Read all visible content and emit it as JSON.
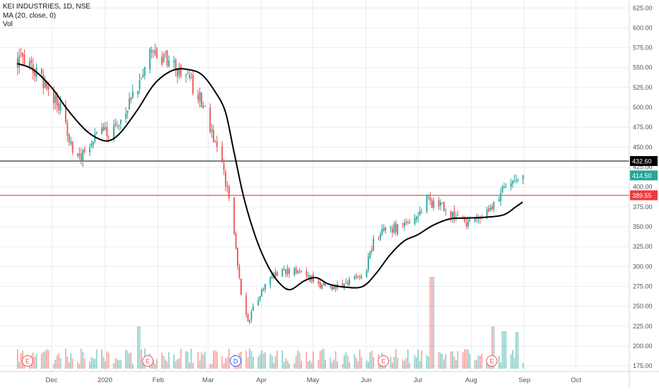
{
  "legend": {
    "title": "KEI INDUSTRIES, 1D, NSE",
    "ma": "MA (20, close, 0)",
    "vol": "Vol"
  },
  "colors": {
    "up": "#26a69a",
    "down": "#ef5350",
    "ma": "#000000",
    "grid": "#e8ecf2",
    "axis_text": "#50535e",
    "resistance": "#000000",
    "support": "#ef3a3a",
    "last": "#26a69a"
  },
  "chart_data": {
    "type": "candlestick",
    "y_axis": {
      "ylim": [
        168,
        635
      ],
      "ticks": [
        175,
        200,
        225,
        250,
        275,
        300,
        325,
        350,
        375,
        400,
        425,
        450,
        475,
        500,
        525,
        550,
        575,
        600,
        625
      ],
      "tick_labels": [
        "175.00",
        "200.00",
        "225.00",
        "250.00",
        "275.00",
        "300.00",
        "325.00",
        "350.00",
        "375.00",
        "400.00",
        "425.00",
        "450.00",
        "475.00",
        "500.00",
        "525.00",
        "550.00",
        "575.00",
        "600.00",
        "625.00"
      ]
    },
    "x_axis": {
      "ticks": [
        "2019-12-01",
        "2020-01-01",
        "2020-02-01",
        "2020-03-01",
        "2020-04-01",
        "2020-05-01",
        "2020-06-01",
        "2020-07-01",
        "2020-08-01",
        "2020-09-01",
        "2020-10-01"
      ],
      "tick_labels": [
        "Dec",
        "2020",
        "Feb",
        "Mar",
        "Apr",
        "May",
        "Jun",
        "Jul",
        "Aug",
        "Sep",
        "Oct"
      ]
    },
    "price_path": [
      [
        "2019-11-11",
        560
      ],
      [
        "2019-11-20",
        548
      ],
      [
        "2019-11-28",
        525
      ],
      [
        "2019-12-05",
        505
      ],
      [
        "2019-12-12",
        450
      ],
      [
        "2019-12-18",
        440
      ],
      [
        "2019-12-24",
        460
      ],
      [
        "2019-12-30",
        470
      ],
      [
        "2020-01-06",
        470
      ],
      [
        "2020-01-13",
        495
      ],
      [
        "2020-01-20",
        530
      ],
      [
        "2020-01-27",
        570
      ],
      [
        "2020-01-31",
        565
      ],
      [
        "2020-02-06",
        560
      ],
      [
        "2020-02-13",
        545
      ],
      [
        "2020-02-20",
        530
      ],
      [
        "2020-02-27",
        505
      ],
      [
        "2020-03-03",
        470
      ],
      [
        "2020-03-07",
        440
      ],
      [
        "2020-03-12",
        400
      ],
      [
        "2020-03-15",
        355
      ],
      [
        "2020-03-18",
        300
      ],
      [
        "2020-03-20",
        265
      ],
      [
        "2020-03-24",
        230
      ],
      [
        "2020-03-27",
        250
      ],
      [
        "2020-04-01",
        270
      ],
      [
        "2020-04-08",
        290
      ],
      [
        "2020-04-15",
        295
      ],
      [
        "2020-04-22",
        292
      ],
      [
        "2020-04-30",
        285
      ],
      [
        "2020-05-07",
        275
      ],
      [
        "2020-05-14",
        272
      ],
      [
        "2020-05-20",
        278
      ],
      [
        "2020-05-27",
        285
      ],
      [
        "2020-06-01",
        300
      ],
      [
        "2020-06-05",
        330
      ],
      [
        "2020-06-10",
        345
      ],
      [
        "2020-06-17",
        348
      ],
      [
        "2020-06-24",
        355
      ],
      [
        "2020-07-01",
        365
      ],
      [
        "2020-07-06",
        385
      ],
      [
        "2020-07-10",
        378
      ],
      [
        "2020-07-17",
        372
      ],
      [
        "2020-07-24",
        362
      ],
      [
        "2020-07-31",
        355
      ],
      [
        "2020-08-07",
        360
      ],
      [
        "2020-08-14",
        375
      ],
      [
        "2020-08-20",
        400
      ],
      [
        "2020-08-26",
        405
      ],
      [
        "2020-08-31",
        414.5
      ]
    ],
    "moving_average": {
      "name": "MA (20, close, 0)",
      "points": [
        [
          "2019-11-11",
          555
        ],
        [
          "2019-11-20",
          548
        ],
        [
          "2019-12-01",
          525
        ],
        [
          "2019-12-10",
          498
        ],
        [
          "2019-12-20",
          473
        ],
        [
          "2019-12-27",
          462
        ],
        [
          "2020-01-03",
          458
        ],
        [
          "2020-01-10",
          468
        ],
        [
          "2020-01-20",
          497
        ],
        [
          "2020-01-30",
          530
        ],
        [
          "2020-02-10",
          547
        ],
        [
          "2020-02-20",
          547
        ],
        [
          "2020-02-27",
          540
        ],
        [
          "2020-03-05",
          520
        ],
        [
          "2020-03-11",
          495
        ],
        [
          "2020-03-16",
          445
        ],
        [
          "2020-03-22",
          385
        ],
        [
          "2020-03-29",
          335
        ],
        [
          "2020-04-05",
          300
        ],
        [
          "2020-04-12",
          278
        ],
        [
          "2020-04-18",
          271
        ],
        [
          "2020-04-26",
          282
        ],
        [
          "2020-05-03",
          286
        ],
        [
          "2020-05-10",
          278
        ],
        [
          "2020-05-20",
          274
        ],
        [
          "2020-05-30",
          275
        ],
        [
          "2020-06-07",
          292
        ],
        [
          "2020-06-15",
          315
        ],
        [
          "2020-06-23",
          332
        ],
        [
          "2020-07-01",
          340
        ],
        [
          "2020-07-10",
          352
        ],
        [
          "2020-07-20",
          360
        ],
        [
          "2020-07-31",
          361
        ],
        [
          "2020-08-10",
          362
        ],
        [
          "2020-08-20",
          365
        ],
        [
          "2020-08-27",
          375
        ],
        [
          "2020-08-31",
          381
        ]
      ]
    },
    "horizontal_lines": [
      {
        "name": "resistance",
        "value": 432.6,
        "label": "432.60"
      },
      {
        "name": "support",
        "value": 389.55,
        "label": "389.55"
      }
    ],
    "last_price": {
      "value": 414.5,
      "label": "414.50"
    },
    "volume": {
      "spikes": [
        [
          "2020-01-20",
          0.46
        ],
        [
          "2020-07-09",
          1.0
        ],
        [
          "2020-08-14",
          0.46
        ],
        [
          "2020-08-20",
          0.41
        ],
        [
          "2020-08-28",
          0.4
        ]
      ]
    },
    "event_markers": [
      {
        "date": "2019-11-17",
        "label": "E"
      },
      {
        "date": "2020-01-26",
        "label": "E"
      },
      {
        "date": "2020-03-17",
        "label": "D"
      },
      {
        "date": "2020-06-11",
        "label": "E"
      },
      {
        "date": "2020-08-13",
        "label": "E"
      }
    ]
  }
}
